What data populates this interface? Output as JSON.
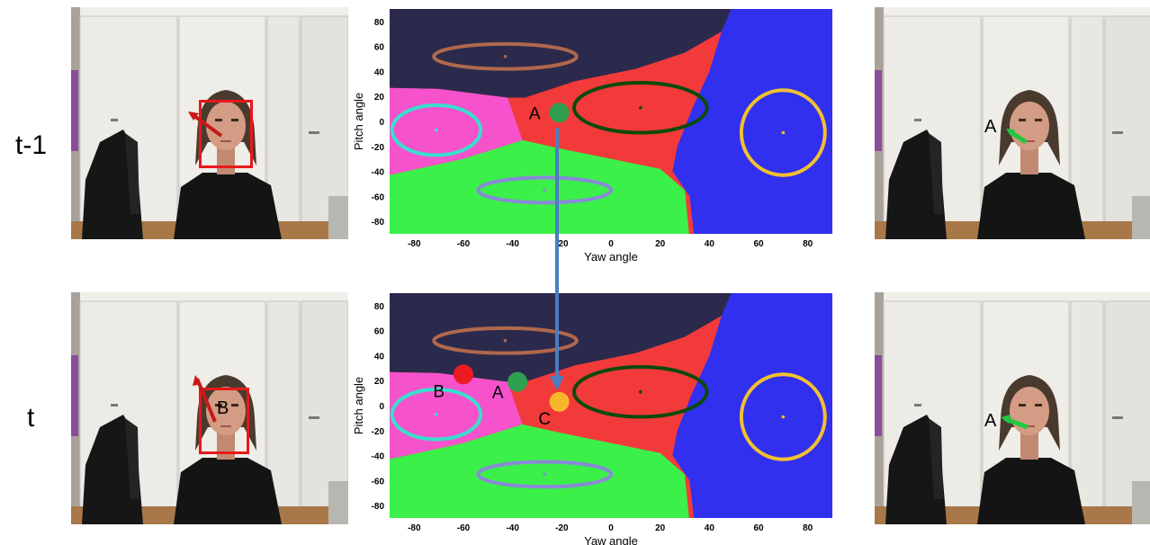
{
  "rows": [
    {
      "label": "t-1"
    },
    {
      "label": "t"
    }
  ],
  "panels": {
    "left_top": {
      "box_color": "#e8181c",
      "arrow_color": "#c81818",
      "marker": ""
    },
    "left_bottom": {
      "box_color": "#e8181c",
      "arrow_color": "#c81818",
      "marker": "B"
    },
    "right_top": {
      "arrow_color": "#22c840",
      "marker": "A"
    },
    "right_bottom": {
      "arrow_color": "#22c840",
      "marker": "A"
    }
  },
  "chart_data": [
    {
      "type": "scatter",
      "title": "",
      "xlabel": "Yaw angle",
      "ylabel": "Pitch angle",
      "xlim": [
        -90,
        90
      ],
      "ylim": [
        -90,
        90
      ],
      "xticks": [
        -80,
        -60,
        -40,
        -20,
        0,
        20,
        40,
        60,
        80
      ],
      "yticks": [
        80,
        60,
        40,
        20,
        0,
        -20,
        -40,
        -60,
        -80
      ],
      "region_colors": {
        "top": "#2b2a4c",
        "left": "#f552cc",
        "bottom": "#3cf04a",
        "center": "#f23a3a",
        "right": "#3030ee"
      },
      "clusters": [
        {
          "center": [
            -43,
            52
          ],
          "rx": 29,
          "ry": 10,
          "color": "#b0684c"
        },
        {
          "center": [
            -71,
            -7
          ],
          "rx": 18,
          "ry": 20,
          "color": "#38e0cc"
        },
        {
          "center": [
            12,
            11
          ],
          "rx": 27,
          "ry": 20,
          "color": "#0c4a0c"
        },
        {
          "center": [
            70,
            -9
          ],
          "rx": 17,
          "ry": 34,
          "color": "#f2c030"
        },
        {
          "center": [
            -27,
            -55
          ],
          "rx": 27,
          "ry": 10,
          "color": "#8a88d8"
        }
      ],
      "points": [
        {
          "label": "A",
          "x": -21,
          "y": 7,
          "color": "#2ea050"
        }
      ]
    },
    {
      "type": "scatter",
      "title": "",
      "xlabel": "Yaw angle",
      "ylabel": "Pitch angle",
      "xlim": [
        -90,
        90
      ],
      "ylim": [
        -90,
        90
      ],
      "xticks": [
        -80,
        -60,
        -40,
        -20,
        0,
        20,
        40,
        60,
        80
      ],
      "yticks": [
        80,
        60,
        40,
        20,
        0,
        -20,
        -40,
        -60,
        -80
      ],
      "region_colors": {
        "top": "#2b2a4c",
        "left": "#f552cc",
        "bottom": "#3cf04a",
        "center": "#f23a3a",
        "right": "#3030ee"
      },
      "clusters": [
        {
          "center": [
            -43,
            52
          ],
          "rx": 29,
          "ry": 10,
          "color": "#b0684c"
        },
        {
          "center": [
            -71,
            -7
          ],
          "rx": 18,
          "ry": 20,
          "color": "#38e0cc"
        },
        {
          "center": [
            12,
            11
          ],
          "rx": 27,
          "ry": 20,
          "color": "#0c4a0c"
        },
        {
          "center": [
            70,
            -9
          ],
          "rx": 17,
          "ry": 34,
          "color": "#f2c030"
        },
        {
          "center": [
            -27,
            -55
          ],
          "rx": 27,
          "ry": 10,
          "color": "#8a88d8"
        }
      ],
      "points": [
        {
          "label": "B",
          "x": -60,
          "y": 25,
          "color": "#ee1a22"
        },
        {
          "label": "A",
          "x": -38,
          "y": 19,
          "color": "#2ea050"
        },
        {
          "label": "C",
          "x": -21,
          "y": 3,
          "color": "#f6b82a"
        }
      ]
    }
  ],
  "transition_arrow": {
    "color": "#4a7ec0"
  }
}
